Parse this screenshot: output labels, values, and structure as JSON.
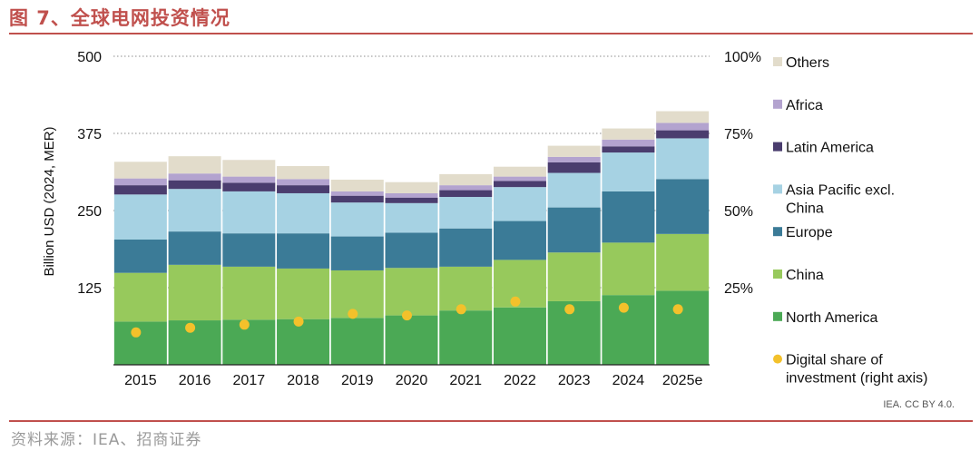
{
  "header": {
    "figure_title": "图 7、全球电网投资情况"
  },
  "footer": {
    "source": "资料来源：IEA、招商证券",
    "credit": "IEA. CC BY 4.0."
  },
  "colors": {
    "north_america": "#4ba955",
    "china": "#97c95c",
    "europe": "#3b7b97",
    "asia_pacific": "#a6d2e3",
    "latin_america": "#4a3d6e",
    "africa": "#b3a3cf",
    "others": "#e2dccb",
    "digital_share": "#f3c12b",
    "title_red": "#c0504d"
  },
  "chart_data": {
    "type": "bar",
    "stacked": true,
    "categories": [
      "2015",
      "2016",
      "2017",
      "2018",
      "2019",
      "2020",
      "2021",
      "2022",
      "2023",
      "2024",
      "2025e"
    ],
    "ylabel": "Billion USD (2024, MER)",
    "ylim": [
      0,
      500
    ],
    "yticks": [
      0,
      125,
      250,
      375,
      500
    ],
    "ytick_labels": [
      "",
      "125",
      "250",
      "375",
      "500"
    ],
    "y2label": "Digital share of investment (right axis)",
    "y2lim": [
      0,
      100
    ],
    "y2ticks": [
      25,
      50,
      75,
      100
    ],
    "y2tick_labels": [
      "25%",
      "50%",
      "75%",
      "100%"
    ],
    "grid": true,
    "legend_position": "right",
    "series": [
      {
        "name": "North America",
        "color_key": "north_america",
        "values": [
          70,
          72,
          73,
          74,
          76,
          80,
          88,
          93,
          103,
          113,
          120
        ]
      },
      {
        "name": "China",
        "color_key": "china",
        "values": [
          79,
          90,
          86,
          82,
          77,
          77,
          71,
          77,
          79,
          85,
          92
        ]
      },
      {
        "name": "Europe",
        "color_key": "europe",
        "values": [
          54,
          54,
          54,
          57,
          55,
          57,
          62,
          63,
          73,
          83,
          89
        ]
      },
      {
        "name": "Asia Pacific excl.\nChina",
        "color_key": "asia_pacific",
        "values": [
          73,
          69,
          68,
          65,
          55,
          48,
          51,
          55,
          56,
          63,
          66
        ]
      },
      {
        "name": "Latin America",
        "color_key": "latin_america",
        "values": [
          15,
          14,
          14,
          13,
          11,
          9,
          11,
          10,
          17,
          10,
          13
        ]
      },
      {
        "name": "Africa",
        "color_key": "africa",
        "values": [
          11,
          11,
          10,
          10,
          7,
          7,
          8,
          7,
          9,
          11,
          12
        ]
      },
      {
        "name": "Others",
        "color_key": "others",
        "values": [
          27,
          28,
          27,
          21,
          19,
          18,
          18,
          16,
          18,
          18,
          19
        ]
      }
    ],
    "line_series": {
      "name": "Digital share of\ninvestment (right axis)",
      "axis": "right",
      "marker": "circle",
      "color_key": "digital_share",
      "values": [
        10.5,
        12.0,
        13.0,
        14.0,
        16.5,
        16.0,
        18.0,
        20.5,
        18.0,
        18.5,
        18.0
      ]
    }
  }
}
